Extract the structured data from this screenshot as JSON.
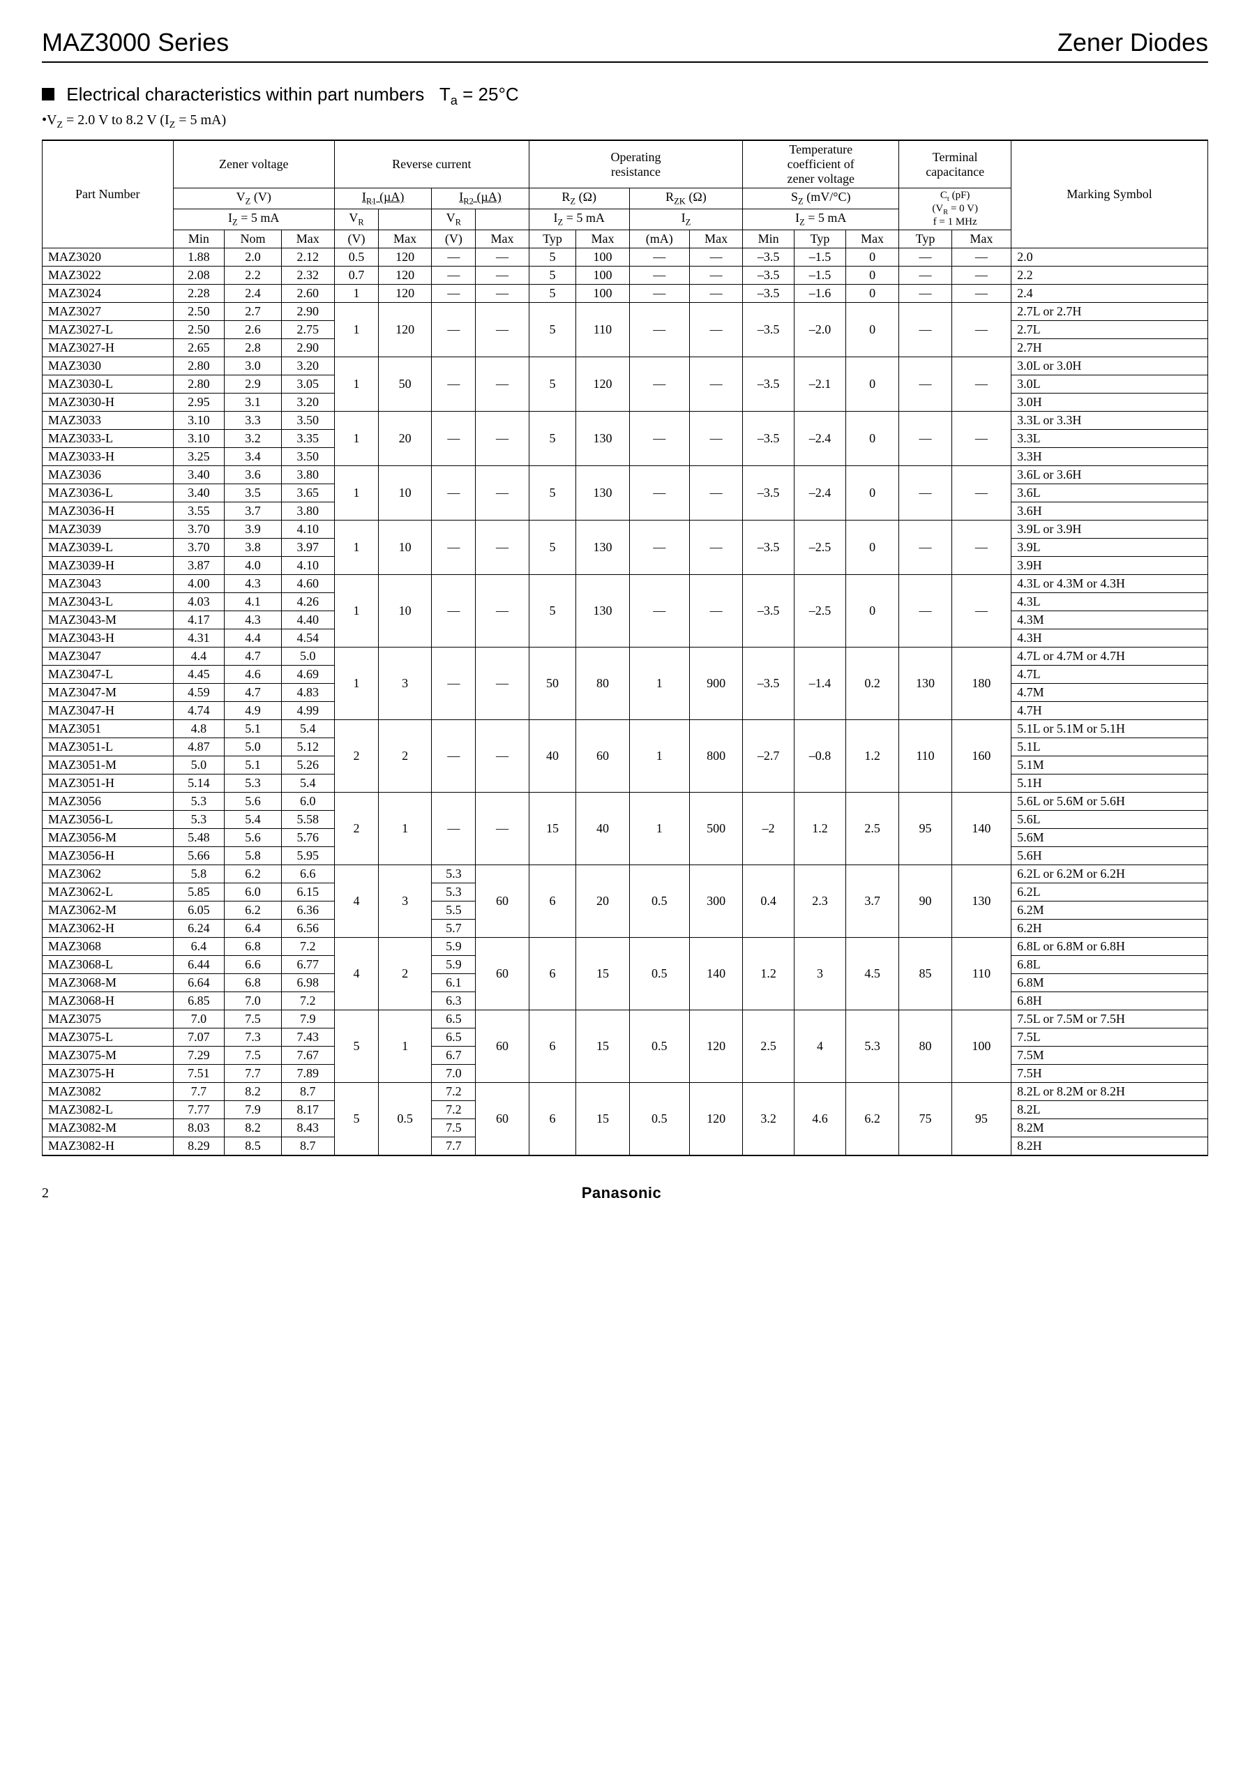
{
  "header": {
    "series": "MAZ3000 Series",
    "doc_type": "Zener Diodes"
  },
  "section": {
    "title": "Electrical characteristics within part numbers",
    "temp": "T",
    "temp_sub": "a",
    "temp_val": " = 25°C",
    "subtitle": "V",
    "subtitle_sub": "Z",
    "subtitle_rest": " = 2.0 V to 8.2 V (I",
    "subtitle_sub2": "Z",
    "subtitle_rest2": " = 5 mA)"
  },
  "columns": {
    "part_number": "Part Number",
    "zener_voltage": "Zener voltage",
    "reverse_current": "Reverse current",
    "operating_resistance": "Operating\nresistance",
    "temp_coef": "Temperature\ncoefficient of\nzener voltage",
    "terminal_cap": "Terminal\ncapacitance",
    "marking_symbol": "Marking Symbol",
    "vz": "V",
    "vz_sub": "Z",
    "vz_unit": " (V)",
    "iz5ma": "I",
    "iz5ma_sub": "Z",
    "iz5ma_rest": " = 5 mA",
    "ir1": "I",
    "ir1_sub": "R1",
    "ir1_unit": " (µA)",
    "ir2": "I",
    "ir2_sub": "R2",
    "ir2_unit": " (µA)",
    "vr": "V",
    "vr_sub": "R",
    "rz": "R",
    "rz_sub": "Z",
    "rz_unit": " (Ω)",
    "rzk": "R",
    "rzk_sub": "ZK",
    "rzk_unit": " (Ω)",
    "iz": "I",
    "iz_sub": "Z",
    "sz": "S",
    "sz_sub": "Z",
    "sz_unit": " (mV/°C)",
    "ct": "C",
    "ct_sub": "t",
    "ct_unit": " (pF)",
    "ct_cond1": "(V",
    "ct_cond1_sub": "R",
    "ct_cond1_rest": " = 0 V)",
    "ct_cond2": "f = 1 MHz",
    "min": "Min",
    "nom": "Nom",
    "max": "Max",
    "typ": "Typ",
    "v": "(V)",
    "ma": "(mA)"
  },
  "groups": [
    {
      "rows": [
        {
          "pn": "MAZ3020",
          "min": "1.88",
          "nom": "2.0",
          "max": "2.12",
          "ms": "2.0"
        },
        {
          "pn": "MAZ3022",
          "min": "2.08",
          "nom": "2.2",
          "max": "2.32",
          "ms": "2.2"
        },
        {
          "pn": "MAZ3024",
          "min": "2.28",
          "nom": "2.4",
          "max": "2.60",
          "ms": "2.4"
        }
      ],
      "perRow": true,
      "perRowData": [
        {
          "vr1": "0.5",
          "ir1max": "120",
          "vr2": "—",
          "ir2max": "—",
          "rz_typ": "5",
          "rz_max": "100",
          "rzk_ma": "—",
          "rzk_max": "—",
          "sz_min": "–3.5",
          "sz_typ": "–1.5",
          "sz_max": "0",
          "ct_typ": "—",
          "ct_max": "—"
        },
        {
          "vr1": "0.7",
          "ir1max": "120",
          "vr2": "—",
          "ir2max": "—",
          "rz_typ": "5",
          "rz_max": "100",
          "rzk_ma": "—",
          "rzk_max": "—",
          "sz_min": "–3.5",
          "sz_typ": "–1.5",
          "sz_max": "0",
          "ct_typ": "—",
          "ct_max": "—"
        },
        {
          "vr1": "1",
          "ir1max": "120",
          "vr2": "—",
          "ir2max": "—",
          "rz_typ": "5",
          "rz_max": "100",
          "rzk_ma": "—",
          "rzk_max": "—",
          "sz_min": "–3.5",
          "sz_typ": "–1.6",
          "sz_max": "0",
          "ct_typ": "—",
          "ct_max": "—"
        }
      ]
    },
    {
      "rows": [
        {
          "pn": "MAZ3027",
          "min": "2.50",
          "nom": "2.7",
          "max": "2.90",
          "ms": "2.7L or 2.7H"
        },
        {
          "pn": "MAZ3027-L",
          "min": "2.50",
          "nom": "2.6",
          "max": "2.75",
          "ms": "2.7L"
        },
        {
          "pn": "MAZ3027-H",
          "min": "2.65",
          "nom": "2.8",
          "max": "2.90",
          "ms": "2.7H"
        }
      ],
      "shared": {
        "vr1": "1",
        "ir1max": "120",
        "vr2": "—",
        "ir2max": "—",
        "rz_typ": "5",
        "rz_max": "110",
        "rzk_ma": "—",
        "rzk_max": "—",
        "sz_min": "–3.5",
        "sz_typ": "–2.0",
        "sz_max": "0",
        "ct_typ": "—",
        "ct_max": "—"
      }
    },
    {
      "rows": [
        {
          "pn": "MAZ3030",
          "min": "2.80",
          "nom": "3.0",
          "max": "3.20",
          "ms": "3.0L or 3.0H"
        },
        {
          "pn": "MAZ3030-L",
          "min": "2.80",
          "nom": "2.9",
          "max": "3.05",
          "ms": "3.0L"
        },
        {
          "pn": "MAZ3030-H",
          "min": "2.95",
          "nom": "3.1",
          "max": "3.20",
          "ms": "3.0H"
        }
      ],
      "shared": {
        "vr1": "1",
        "ir1max": "50",
        "vr2": "—",
        "ir2max": "—",
        "rz_typ": "5",
        "rz_max": "120",
        "rzk_ma": "—",
        "rzk_max": "—",
        "sz_min": "–3.5",
        "sz_typ": "–2.1",
        "sz_max": "0",
        "ct_typ": "—",
        "ct_max": "—"
      }
    },
    {
      "rows": [
        {
          "pn": "MAZ3033",
          "min": "3.10",
          "nom": "3.3",
          "max": "3.50",
          "ms": "3.3L or 3.3H"
        },
        {
          "pn": "MAZ3033-L",
          "min": "3.10",
          "nom": "3.2",
          "max": "3.35",
          "ms": "3.3L"
        },
        {
          "pn": "MAZ3033-H",
          "min": "3.25",
          "nom": "3.4",
          "max": "3.50",
          "ms": "3.3H"
        }
      ],
      "shared": {
        "vr1": "1",
        "ir1max": "20",
        "vr2": "—",
        "ir2max": "—",
        "rz_typ": "5",
        "rz_max": "130",
        "rzk_ma": "—",
        "rzk_max": "—",
        "sz_min": "–3.5",
        "sz_typ": "–2.4",
        "sz_max": "0",
        "ct_typ": "—",
        "ct_max": "—"
      }
    },
    {
      "rows": [
        {
          "pn": "MAZ3036",
          "min": "3.40",
          "nom": "3.6",
          "max": "3.80",
          "ms": "3.6L or 3.6H"
        },
        {
          "pn": "MAZ3036-L",
          "min": "3.40",
          "nom": "3.5",
          "max": "3.65",
          "ms": "3.6L"
        },
        {
          "pn": "MAZ3036-H",
          "min": "3.55",
          "nom": "3.7",
          "max": "3.80",
          "ms": "3.6H"
        }
      ],
      "shared": {
        "vr1": "1",
        "ir1max": "10",
        "vr2": "—",
        "ir2max": "—",
        "rz_typ": "5",
        "rz_max": "130",
        "rzk_ma": "—",
        "rzk_max": "—",
        "sz_min": "–3.5",
        "sz_typ": "–2.4",
        "sz_max": "0",
        "ct_typ": "—",
        "ct_max": "—"
      }
    },
    {
      "rows": [
        {
          "pn": "MAZ3039",
          "min": "3.70",
          "nom": "3.9",
          "max": "4.10",
          "ms": "3.9L or 3.9H"
        },
        {
          "pn": "MAZ3039-L",
          "min": "3.70",
          "nom": "3.8",
          "max": "3.97",
          "ms": "3.9L"
        },
        {
          "pn": "MAZ3039-H",
          "min": "3.87",
          "nom": "4.0",
          "max": "4.10",
          "ms": "3.9H"
        }
      ],
      "shared": {
        "vr1": "1",
        "ir1max": "10",
        "vr2": "—",
        "ir2max": "—",
        "rz_typ": "5",
        "rz_max": "130",
        "rzk_ma": "—",
        "rzk_max": "—",
        "sz_min": "–3.5",
        "sz_typ": "–2.5",
        "sz_max": "0",
        "ct_typ": "—",
        "ct_max": "—"
      }
    },
    {
      "rows": [
        {
          "pn": "MAZ3043",
          "min": "4.00",
          "nom": "4.3",
          "max": "4.60",
          "ms": "4.3L or 4.3M or 4.3H"
        },
        {
          "pn": "MAZ3043-L",
          "min": "4.03",
          "nom": "4.1",
          "max": "4.26",
          "ms": "4.3L"
        },
        {
          "pn": "MAZ3043-M",
          "min": "4.17",
          "nom": "4.3",
          "max": "4.40",
          "ms": "4.3M"
        },
        {
          "pn": "MAZ3043-H",
          "min": "4.31",
          "nom": "4.4",
          "max": "4.54",
          "ms": "4.3H"
        }
      ],
      "shared": {
        "vr1": "1",
        "ir1max": "10",
        "vr2": "—",
        "ir2max": "—",
        "rz_typ": "5",
        "rz_max": "130",
        "rzk_ma": "—",
        "rzk_max": "—",
        "sz_min": "–3.5",
        "sz_typ": "–2.5",
        "sz_max": "0",
        "ct_typ": "—",
        "ct_max": "—"
      }
    },
    {
      "rows": [
        {
          "pn": "MAZ3047",
          "min": "4.4",
          "nom": "4.7",
          "max": "5.0",
          "ms": "4.7L or 4.7M or 4.7H"
        },
        {
          "pn": "MAZ3047-L",
          "min": "4.45",
          "nom": "4.6",
          "max": "4.69",
          "ms": "4.7L"
        },
        {
          "pn": "MAZ3047-M",
          "min": "4.59",
          "nom": "4.7",
          "max": "4.83",
          "ms": "4.7M"
        },
        {
          "pn": "MAZ3047-H",
          "min": "4.74",
          "nom": "4.9",
          "max": "4.99",
          "ms": "4.7H"
        }
      ],
      "shared": {
        "vr1": "1",
        "ir1max": "3",
        "vr2": "—",
        "ir2max": "—",
        "rz_typ": "50",
        "rz_max": "80",
        "rzk_ma": "1",
        "rzk_max": "900",
        "sz_min": "–3.5",
        "sz_typ": "–1.4",
        "sz_max": "0.2",
        "ct_typ": "130",
        "ct_max": "180"
      }
    },
    {
      "rows": [
        {
          "pn": "MAZ3051",
          "min": "4.8",
          "nom": "5.1",
          "max": "5.4",
          "ms": "5.1L or 5.1M or 5.1H"
        },
        {
          "pn": "MAZ3051-L",
          "min": "4.87",
          "nom": "5.0",
          "max": "5.12",
          "ms": "5.1L"
        },
        {
          "pn": "MAZ3051-M",
          "min": "5.0",
          "nom": "5.1",
          "max": "5.26",
          "ms": "5.1M"
        },
        {
          "pn": "MAZ3051-H",
          "min": "5.14",
          "nom": "5.3",
          "max": "5.4",
          "ms": "5.1H"
        }
      ],
      "shared": {
        "vr1": "2",
        "ir1max": "2",
        "vr2": "—",
        "ir2max": "—",
        "rz_typ": "40",
        "rz_max": "60",
        "rzk_ma": "1",
        "rzk_max": "800",
        "sz_min": "–2.7",
        "sz_typ": "–0.8",
        "sz_max": "1.2",
        "ct_typ": "110",
        "ct_max": "160"
      }
    },
    {
      "rows": [
        {
          "pn": "MAZ3056",
          "min": "5.3",
          "nom": "5.6",
          "max": "6.0",
          "ms": "5.6L or 5.6M or 5.6H"
        },
        {
          "pn": "MAZ3056-L",
          "min": "5.3",
          "nom": "5.4",
          "max": "5.58",
          "ms": "5.6L"
        },
        {
          "pn": "MAZ3056-M",
          "min": "5.48",
          "nom": "5.6",
          "max": "5.76",
          "ms": "5.6M"
        },
        {
          "pn": "MAZ3056-H",
          "min": "5.66",
          "nom": "5.8",
          "max": "5.95",
          "ms": "5.6H"
        }
      ],
      "shared": {
        "vr1": "2",
        "ir1max": "1",
        "vr2": "—",
        "ir2max": "—",
        "rz_typ": "15",
        "rz_max": "40",
        "rzk_ma": "1",
        "rzk_max": "500",
        "sz_min": "–2",
        "sz_typ": "1.2",
        "sz_max": "2.5",
        "ct_typ": "95",
        "ct_max": "140"
      }
    },
    {
      "rows": [
        {
          "pn": "MAZ3062",
          "min": "5.8",
          "nom": "6.2",
          "max": "6.6",
          "ms": "6.2L or 6.2M or 6.2H",
          "vr2": "5.3"
        },
        {
          "pn": "MAZ3062-L",
          "min": "5.85",
          "nom": "6.0",
          "max": "6.15",
          "ms": "6.2L",
          "vr2": "5.3"
        },
        {
          "pn": "MAZ3062-M",
          "min": "6.05",
          "nom": "6.2",
          "max": "6.36",
          "ms": "6.2M",
          "vr2": "5.5"
        },
        {
          "pn": "MAZ3062-H",
          "min": "6.24",
          "nom": "6.4",
          "max": "6.56",
          "ms": "6.2H",
          "vr2": "5.7"
        }
      ],
      "shared": {
        "vr1": "4",
        "ir1max": "3",
        "ir2max": "60",
        "rz_typ": "6",
        "rz_max": "20",
        "rzk_ma": "0.5",
        "rzk_max": "300",
        "sz_min": "0.4",
        "sz_typ": "2.3",
        "sz_max": "3.7",
        "ct_typ": "90",
        "ct_max": "130"
      },
      "hasVr2PerRow": true
    },
    {
      "rows": [
        {
          "pn": "MAZ3068",
          "min": "6.4",
          "nom": "6.8",
          "max": "7.2",
          "ms": "6.8L or 6.8M or 6.8H",
          "vr2": "5.9"
        },
        {
          "pn": "MAZ3068-L",
          "min": "6.44",
          "nom": "6.6",
          "max": "6.77",
          "ms": "6.8L",
          "vr2": "5.9"
        },
        {
          "pn": "MAZ3068-M",
          "min": "6.64",
          "nom": "6.8",
          "max": "6.98",
          "ms": "6.8M",
          "vr2": "6.1"
        },
        {
          "pn": "MAZ3068-H",
          "min": "6.85",
          "nom": "7.0",
          "max": "7.2",
          "ms": "6.8H",
          "vr2": "6.3"
        }
      ],
      "shared": {
        "vr1": "4",
        "ir1max": "2",
        "ir2max": "60",
        "rz_typ": "6",
        "rz_max": "15",
        "rzk_ma": "0.5",
        "rzk_max": "140",
        "sz_min": "1.2",
        "sz_typ": "3",
        "sz_max": "4.5",
        "ct_typ": "85",
        "ct_max": "110"
      },
      "hasVr2PerRow": true
    },
    {
      "rows": [
        {
          "pn": "MAZ3075",
          "min": "7.0",
          "nom": "7.5",
          "max": "7.9",
          "ms": "7.5L or 7.5M or 7.5H",
          "vr2": "6.5"
        },
        {
          "pn": "MAZ3075-L",
          "min": "7.07",
          "nom": "7.3",
          "max": "7.43",
          "ms": "7.5L",
          "vr2": "6.5"
        },
        {
          "pn": "MAZ3075-M",
          "min": "7.29",
          "nom": "7.5",
          "max": "7.67",
          "ms": "7.5M",
          "vr2": "6.7"
        },
        {
          "pn": "MAZ3075-H",
          "min": "7.51",
          "nom": "7.7",
          "max": "7.89",
          "ms": "7.5H",
          "vr2": "7.0"
        }
      ],
      "shared": {
        "vr1": "5",
        "ir1max": "1",
        "ir2max": "60",
        "rz_typ": "6",
        "rz_max": "15",
        "rzk_ma": "0.5",
        "rzk_max": "120",
        "sz_min": "2.5",
        "sz_typ": "4",
        "sz_max": "5.3",
        "ct_typ": "80",
        "ct_max": "100"
      },
      "hasVr2PerRow": true
    },
    {
      "rows": [
        {
          "pn": "MAZ3082",
          "min": "7.7",
          "nom": "8.2",
          "max": "8.7",
          "ms": "8.2L or 8.2M or 8.2H",
          "vr2": "7.2"
        },
        {
          "pn": "MAZ3082-L",
          "min": "7.77",
          "nom": "7.9",
          "max": "8.17",
          "ms": "8.2L",
          "vr2": "7.2"
        },
        {
          "pn": "MAZ3082-M",
          "min": "8.03",
          "nom": "8.2",
          "max": "8.43",
          "ms": "8.2M",
          "vr2": "7.5"
        },
        {
          "pn": "MAZ3082-H",
          "min": "8.29",
          "nom": "8.5",
          "max": "8.7",
          "ms": "8.2H",
          "vr2": "7.7"
        }
      ],
      "shared": {
        "vr1": "5",
        "ir1max": "0.5",
        "ir2max": "60",
        "rz_typ": "6",
        "rz_max": "15",
        "rzk_ma": "0.5",
        "rzk_max": "120",
        "sz_min": "3.2",
        "sz_typ": "4.6",
        "sz_max": "6.2",
        "ct_typ": "75",
        "ct_max": "95"
      },
      "hasVr2PerRow": true
    }
  ],
  "footer": {
    "page": "2",
    "brand": "Panasonic"
  }
}
